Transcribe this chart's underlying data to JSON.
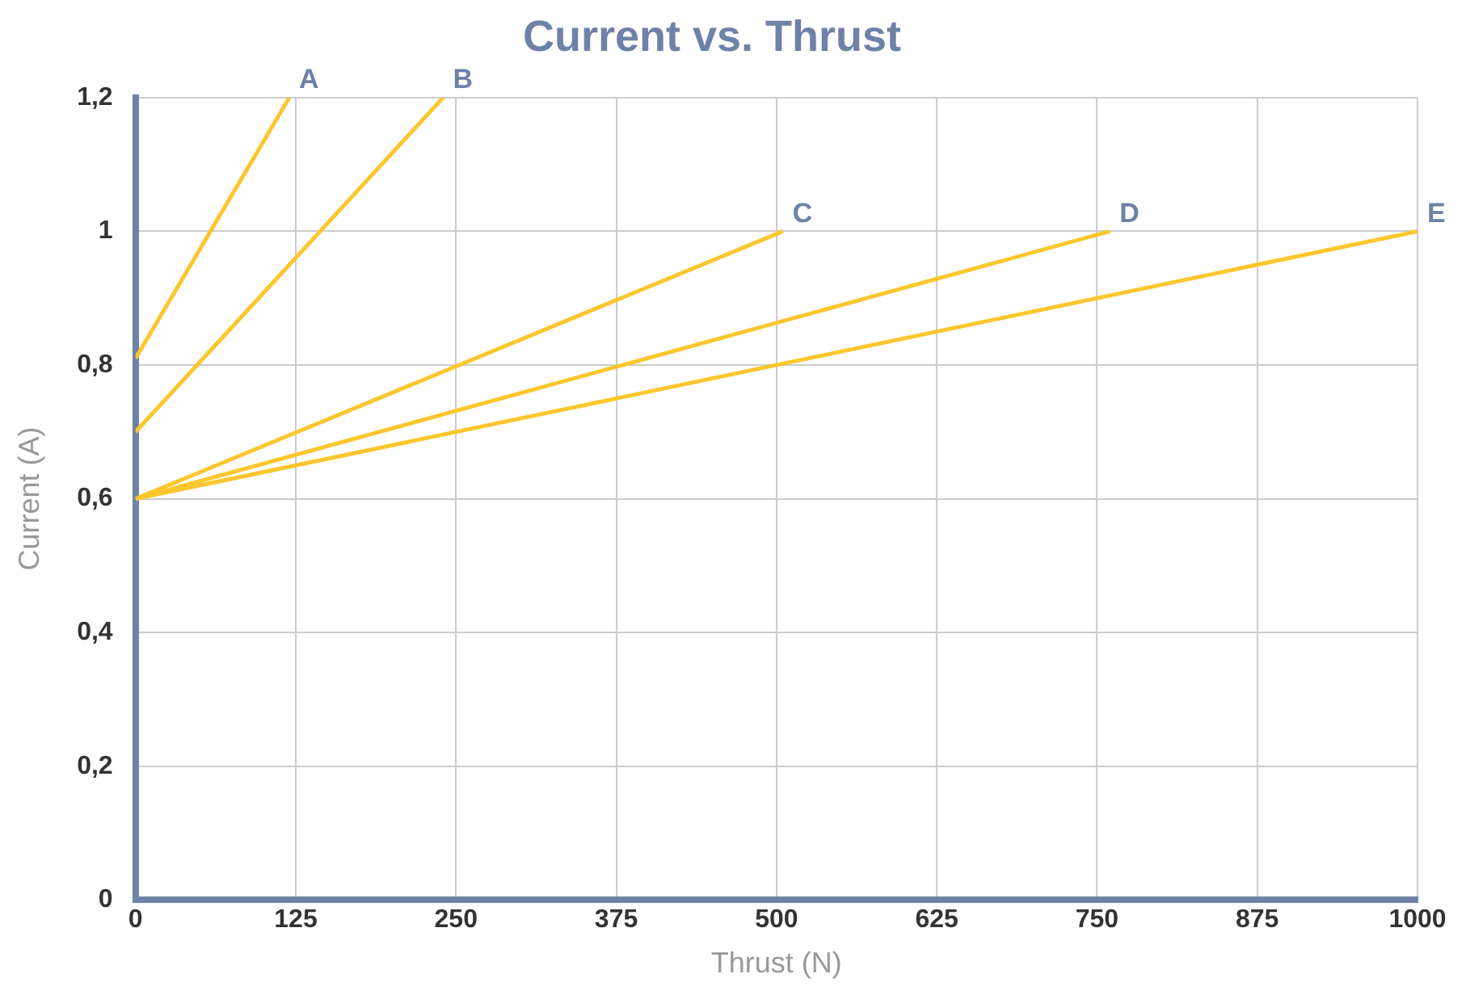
{
  "chart_data": {
    "type": "line",
    "title": "Current vs. Thrust",
    "xlabel": "Thrust (N)",
    "ylabel": "Current (A)",
    "xlim": [
      0,
      1000
    ],
    "xticks": [
      0,
      125,
      250,
      375,
      500,
      625,
      750,
      875,
      1000
    ],
    "ylim": [
      0,
      1.2
    ],
    "yticks": [
      0,
      {
        "value": 0.2,
        "label": "0,2"
      },
      {
        "value": 0.4,
        "label": "0,4"
      },
      {
        "value": 0.6,
        "label": "0,6"
      },
      {
        "value": 0.8,
        "label": "0,8"
      },
      1,
      {
        "value": 1.2,
        "label": "1,2"
      }
    ],
    "grid": true,
    "legend": false,
    "marker": "none",
    "line_style": "solid",
    "series": [
      {
        "name": "A",
        "color": "#fcc72e",
        "x": [
          0,
          120
        ],
        "values": [
          0.81,
          1.2
        ]
      },
      {
        "name": "B",
        "color": "#fcc72e",
        "x": [
          0,
          240
        ],
        "values": [
          0.7,
          1.2
        ]
      },
      {
        "name": "C",
        "color": "#fcc72e",
        "x": [
          0,
          505
        ],
        "values": [
          0.6,
          1.0
        ]
      },
      {
        "name": "D",
        "color": "#fcc72e",
        "x": [
          0,
          760
        ],
        "values": [
          0.6,
          1.0
        ]
      },
      {
        "name": "E",
        "color": "#fcc72e",
        "x": [
          0,
          1000
        ],
        "values": [
          0.6,
          1.0
        ]
      }
    ]
  }
}
